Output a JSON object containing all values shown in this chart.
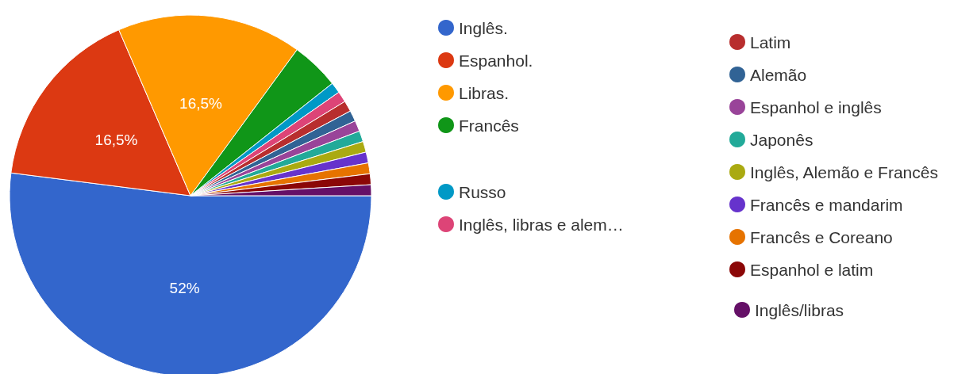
{
  "chart_data": {
    "type": "pie",
    "legend": "right",
    "categories": [
      "Inglês.",
      "Espanhol.",
      "Libras.",
      "Francês",
      "Russo",
      "Inglês, libras e alem…",
      "Latim",
      "Alemão",
      "Espanhol e inglês",
      "Japonês",
      "Inglês, Alemão e Francês",
      "Francês e mandarim",
      "Francês e Coreano",
      "Espanhol e latim",
      "Inglês/libras"
    ],
    "values": [
      52,
      16.5,
      16.5,
      4.3,
      0.97,
      0.97,
      0.97,
      0.97,
      0.97,
      0.97,
      0.97,
      0.97,
      0.97,
      0.97,
      0.97
    ],
    "colors": [
      "#3366cc",
      "#dc3912",
      "#ff9900",
      "#109618",
      "#0099c6",
      "#dd4477",
      "#b82e2e",
      "#316395",
      "#994499",
      "#22aa99",
      "#aaaa11",
      "#6633cc",
      "#e67300",
      "#8b0707",
      "#651067"
    ],
    "value_labels": [
      "52%",
      "16,5%",
      "16,5%",
      null,
      null,
      null,
      null,
      null,
      null,
      null,
      null,
      null,
      null,
      null,
      null
    ]
  }
}
